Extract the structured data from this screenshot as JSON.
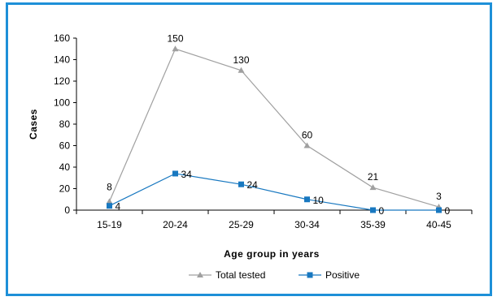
{
  "chart_data": {
    "type": "line",
    "categories": [
      "15-19",
      "20-24",
      "25-29",
      "30-34",
      "35-39",
      "40-45"
    ],
    "series": [
      {
        "name": "Total tested",
        "values": [
          8,
          150,
          130,
          60,
          21,
          3
        ],
        "color": "#a0a0a0",
        "marker": "triangle"
      },
      {
        "name": "Positive",
        "values": [
          4,
          34,
          24,
          10,
          0,
          0
        ],
        "color": "#1878c0",
        "marker": "square"
      }
    ],
    "xlabel": "Age group in years",
    "ylabel": "Cases",
    "ylim": [
      0,
      160
    ],
    "yticks": [
      0,
      20,
      40,
      60,
      80,
      100,
      120,
      140,
      160
    ],
    "grid": false,
    "legend": "bottom"
  }
}
